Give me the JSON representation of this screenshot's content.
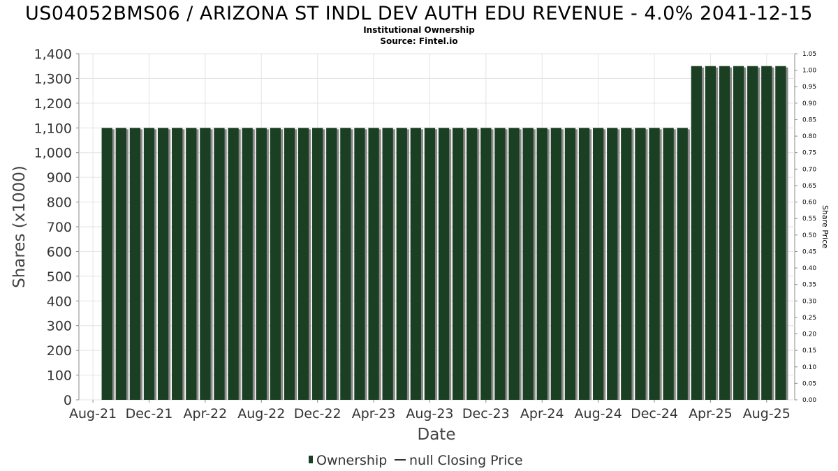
{
  "chart_data": {
    "type": "bar",
    "title": "US04052BMS06 / ARIZONA ST INDL DEV AUTH EDU REVENUE - 4.0% 2041-12-15",
    "subtitle_lines": [
      "Institutional Ownership",
      "Source: Fintel.io"
    ],
    "xlabel": "Date",
    "ylabel": "Shares (x1000)",
    "y2label": "Share Price",
    "ylim": [
      0,
      1400
    ],
    "y2lim": [
      0,
      1.05
    ],
    "x_range": [
      "2021-07",
      "2025-10"
    ],
    "grid": true,
    "legend_position": "bottom-center",
    "y_ticks": [
      "0",
      "100",
      "200",
      "300",
      "400",
      "500",
      "600",
      "700",
      "800",
      "900",
      "1,000",
      "1,100",
      "1,200",
      "1,300",
      "1,400"
    ],
    "y2_ticks": [
      "0.00",
      "0.05",
      "0.10",
      "0.15",
      "0.20",
      "0.25",
      "0.30",
      "0.35",
      "0.40",
      "0.45",
      "0.50",
      "0.55",
      "0.60",
      "0.65",
      "0.70",
      "0.75",
      "0.80",
      "0.85",
      "0.90",
      "0.95",
      "1.00",
      "1.05"
    ],
    "x_ticks": [
      "Aug-21",
      "Dec-21",
      "Apr-22",
      "Aug-22",
      "Dec-22",
      "Apr-23",
      "Aug-23",
      "Dec-23",
      "Apr-24",
      "Aug-24",
      "Dec-24",
      "Apr-25",
      "Aug-25"
    ],
    "series": [
      {
        "name": "Ownership",
        "color": "#1b3f22",
        "x": [
          "2021-09",
          "2021-10",
          "2021-11",
          "2021-12",
          "2022-01",
          "2022-02",
          "2022-03",
          "2022-04",
          "2022-05",
          "2022-06",
          "2022-07",
          "2022-08",
          "2022-09",
          "2022-10",
          "2022-11",
          "2022-12",
          "2023-01",
          "2023-02",
          "2023-03",
          "2023-04",
          "2023-05",
          "2023-06",
          "2023-07",
          "2023-08",
          "2023-09",
          "2023-10",
          "2023-11",
          "2023-12",
          "2024-01",
          "2024-02",
          "2024-03",
          "2024-04",
          "2024-05",
          "2024-06",
          "2024-07",
          "2024-08",
          "2024-09",
          "2024-10",
          "2024-11",
          "2024-12",
          "2025-01",
          "2025-02",
          "2025-03",
          "2025-04",
          "2025-05",
          "2025-06",
          "2025-07",
          "2025-08",
          "2025-09"
        ],
        "values": [
          1100,
          1100,
          1100,
          1100,
          1100,
          1100,
          1100,
          1100,
          1100,
          1100,
          1100,
          1100,
          1100,
          1100,
          1100,
          1100,
          1100,
          1100,
          1100,
          1100,
          1100,
          1100,
          1100,
          1100,
          1100,
          1100,
          1100,
          1100,
          1100,
          1100,
          1100,
          1100,
          1100,
          1100,
          1100,
          1100,
          1100,
          1100,
          1100,
          1100,
          1100,
          1100,
          1350,
          1350,
          1350,
          1350,
          1350,
          1350,
          1350
        ]
      },
      {
        "name": "null Closing Price",
        "color": "#333333",
        "values": []
      }
    ]
  }
}
